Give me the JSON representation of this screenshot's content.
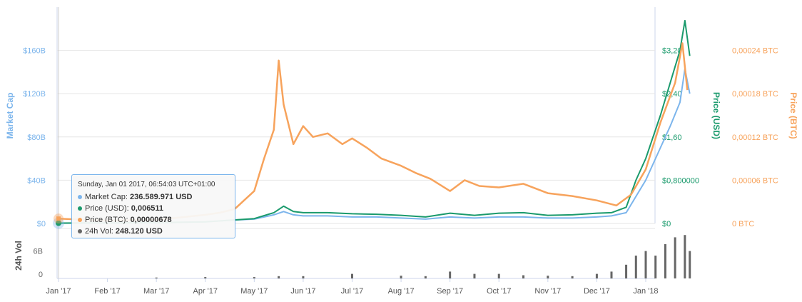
{
  "chart_data": {
    "type": "line",
    "x_labels": [
      "Jan '17",
      "Feb '17",
      "Mar '17",
      "Apr '17",
      "May '17",
      "Jun '17",
      "Jul '17",
      "Aug '17",
      "Sep '17",
      "Oct '17",
      "Nov '17",
      "Dec '17",
      "Jan '18"
    ],
    "axes": {
      "market_cap": {
        "label": "Market Cap",
        "ticks": [
          "$0",
          "$40B",
          "$80B",
          "$120B",
          "$160B"
        ],
        "range": [
          0,
          200
        ],
        "unit": "B USD"
      },
      "price_usd": {
        "label": "Price (USD)",
        "ticks": [
          "$0",
          "$0,800000",
          "$1,60",
          "$2,40",
          "$3,20"
        ],
        "range": [
          0,
          4.0
        ]
      },
      "price_btc": {
        "label": "Price (BTC)",
        "ticks": [
          "0 BTC",
          "0,00006 BTC",
          "0,00012 BTC",
          "0,00018 BTC",
          "0,00024 BTC"
        ],
        "range": [
          0,
          0.0003
        ]
      },
      "volume": {
        "label": "24h Vol",
        "ticks": [
          "0",
          "6B"
        ],
        "range": [
          0,
          10
        ]
      }
    },
    "series": [
      {
        "name": "Market Cap",
        "axis": "market_cap",
        "points": [
          [
            0,
            0.24
          ],
          [
            1,
            0.5
          ],
          [
            2,
            0.8
          ],
          [
            3,
            1.5
          ],
          [
            3.5,
            3
          ],
          [
            4,
            4
          ],
          [
            4.4,
            8
          ],
          [
            4.6,
            11
          ],
          [
            4.8,
            8
          ],
          [
            5,
            7
          ],
          [
            5.5,
            7
          ],
          [
            6,
            6
          ],
          [
            6.5,
            6
          ],
          [
            7,
            5
          ],
          [
            7.5,
            4
          ],
          [
            8,
            6
          ],
          [
            8.5,
            5
          ],
          [
            9,
            6
          ],
          [
            9.5,
            6
          ],
          [
            10,
            5
          ],
          [
            10.5,
            5
          ],
          [
            11,
            6
          ],
          [
            11.3,
            7
          ],
          [
            11.6,
            10
          ],
          [
            11.8,
            25
          ],
          [
            12,
            40
          ],
          [
            12.3,
            70
          ],
          [
            12.5,
            90
          ],
          [
            12.7,
            112
          ],
          [
            12.8,
            143
          ],
          [
            12.9,
            120
          ]
        ]
      },
      {
        "name": "Price (USD)",
        "axis": "price_usd",
        "points": [
          [
            0,
            0.006511
          ],
          [
            1,
            0.01
          ],
          [
            2,
            0.015
          ],
          [
            3,
            0.03
          ],
          [
            3.5,
            0.06
          ],
          [
            4,
            0.09
          ],
          [
            4.4,
            0.2
          ],
          [
            4.6,
            0.32
          ],
          [
            4.8,
            0.22
          ],
          [
            5,
            0.2
          ],
          [
            5.5,
            0.2
          ],
          [
            6,
            0.18
          ],
          [
            6.5,
            0.17
          ],
          [
            7,
            0.15
          ],
          [
            7.5,
            0.12
          ],
          [
            8,
            0.19
          ],
          [
            8.5,
            0.15
          ],
          [
            9,
            0.19
          ],
          [
            9.5,
            0.2
          ],
          [
            10,
            0.15
          ],
          [
            10.5,
            0.16
          ],
          [
            11,
            0.19
          ],
          [
            11.3,
            0.2
          ],
          [
            11.6,
            0.3
          ],
          [
            11.8,
            0.8
          ],
          [
            12,
            1.2
          ],
          [
            12.3,
            2.0
          ],
          [
            12.5,
            2.6
          ],
          [
            12.7,
            3.2
          ],
          [
            12.8,
            3.75
          ],
          [
            12.9,
            3.1
          ]
        ]
      },
      {
        "name": "Price (BTC)",
        "axis": "price_btc",
        "points": [
          [
            0,
            6.78e-06
          ],
          [
            1,
            4e-06
          ],
          [
            2,
            5e-06
          ],
          [
            3,
            1.2e-05
          ],
          [
            3.3,
            1.5e-05
          ],
          [
            3.6,
            2e-05
          ],
          [
            4,
            4.5e-05
          ],
          [
            4.2,
            9e-05
          ],
          [
            4.4,
            0.00013
          ],
          [
            4.5,
            0.000226
          ],
          [
            4.6,
            0.000165
          ],
          [
            4.8,
            0.00011
          ],
          [
            5,
            0.000135
          ],
          [
            5.2,
            0.00012
          ],
          [
            5.5,
            0.000125
          ],
          [
            5.8,
            0.00011
          ],
          [
            6,
            0.000118
          ],
          [
            6.3,
            0.000105
          ],
          [
            6.6,
            9e-05
          ],
          [
            7,
            8e-05
          ],
          [
            7.3,
            7e-05
          ],
          [
            7.6,
            6.2e-05
          ],
          [
            8,
            4.5e-05
          ],
          [
            8.3,
            6e-05
          ],
          [
            8.6,
            5.2e-05
          ],
          [
            9,
            5e-05
          ],
          [
            9.5,
            5.5e-05
          ],
          [
            10,
            4.2e-05
          ],
          [
            10.5,
            3.8e-05
          ],
          [
            11,
            3.2e-05
          ],
          [
            11.4,
            2.5e-05
          ],
          [
            11.7,
            4e-05
          ],
          [
            12,
            7.5e-05
          ],
          [
            12.3,
            0.00014
          ],
          [
            12.6,
            0.000195
          ],
          [
            12.75,
            0.00025
          ],
          [
            12.85,
            0.000185
          ]
        ]
      }
    ],
    "volume_bars": [
      [
        2,
        0.2
      ],
      [
        3,
        0.3
      ],
      [
        4,
        0.3
      ],
      [
        4.5,
        0.5
      ],
      [
        5,
        0.5
      ],
      [
        6,
        1.0
      ],
      [
        7,
        0.6
      ],
      [
        7.5,
        0.5
      ],
      [
        8,
        1.5
      ],
      [
        8.5,
        1.0
      ],
      [
        9,
        1.0
      ],
      [
        9.5,
        0.7
      ],
      [
        10,
        0.6
      ],
      [
        10.5,
        0.5
      ],
      [
        11,
        1.0
      ],
      [
        11.3,
        1.5
      ],
      [
        11.6,
        3.0
      ],
      [
        11.8,
        5.0
      ],
      [
        12,
        6.0
      ],
      [
        12.2,
        5.0
      ],
      [
        12.4,
        7.5
      ],
      [
        12.6,
        9.0
      ],
      [
        12.8,
        9.5
      ],
      [
        12.9,
        6.0
      ]
    ],
    "colors": {
      "market_cap": "#7cb5ec",
      "price_usd": "#1a9a6c",
      "price_btc": "#f7a35c",
      "volume": "#666666"
    },
    "grid": true,
    "tooltip": {
      "header": "Sunday, Jan 01 2017, 06:54:03 UTC+01:00",
      "rows": [
        {
          "label": "Market Cap: ",
          "value": "236.589.971 USD",
          "color": "#7cb5ec"
        },
        {
          "label": "Price (USD): ",
          "value": "0,006511",
          "color": "#1a9a6c"
        },
        {
          "label": "Price (BTC): ",
          "value": "0,00000678",
          "color": "#f7a35c"
        },
        {
          "label": "24h Vol: ",
          "value": "248.120 USD",
          "color": "#666666"
        }
      ]
    }
  }
}
